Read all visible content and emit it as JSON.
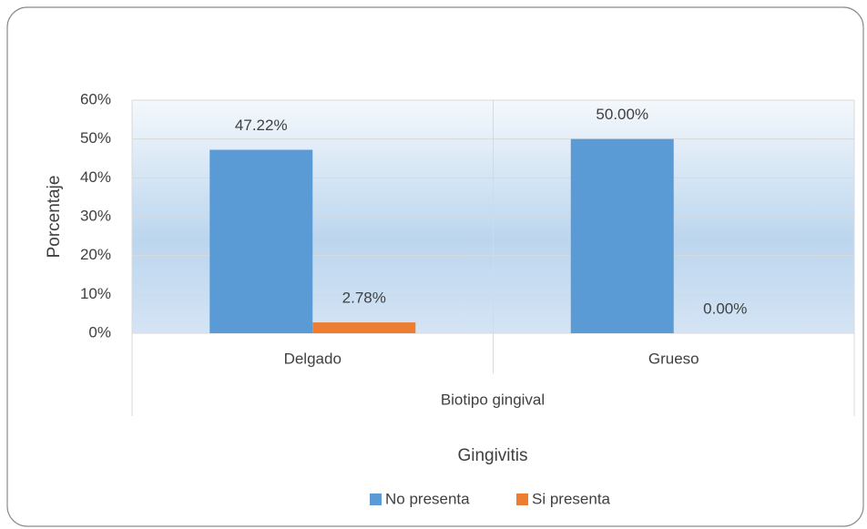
{
  "chart_data": {
    "type": "bar",
    "categories": [
      "Delgado",
      "Grueso"
    ],
    "x_axis_title": "Biotipo gingival",
    "y_axis_title": "Porcentaje",
    "legend_title": "Gingivitis",
    "series": [
      {
        "name": "No presenta",
        "color": "#5b9bd5",
        "values": [
          47.22,
          50
        ],
        "value_labels": [
          "47.22%",
          "50.00%"
        ]
      },
      {
        "name": "Si presenta",
        "color": "#ed7d31",
        "values": [
          2.78,
          0
        ],
        "value_labels": [
          "2.78%",
          "0.00%"
        ]
      }
    ],
    "ylim": [
      0,
      60
    ],
    "yticks": [
      {
        "value": 0,
        "label": "0%"
      },
      {
        "value": 10,
        "label": "10%"
      },
      {
        "value": 20,
        "label": "20%"
      },
      {
        "value": 30,
        "label": "30%"
      },
      {
        "value": 40,
        "label": "40%"
      },
      {
        "value": 50,
        "label": "50%"
      },
      {
        "value": 60,
        "label": "60%"
      }
    ],
    "grid": true,
    "legend": "bottom"
  }
}
